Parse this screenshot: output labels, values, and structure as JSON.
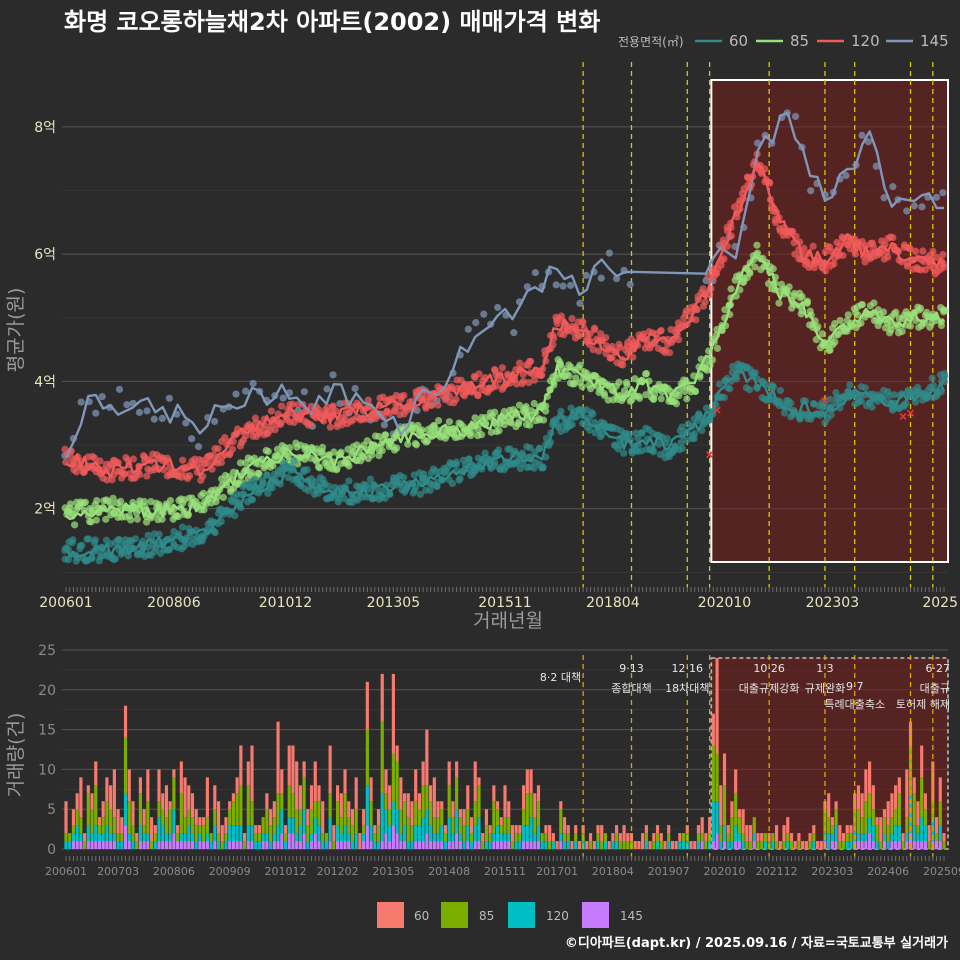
{
  "title": "화명 코오롱하늘채2차 아파트(2002) 매매가격 변화",
  "credit": "©디아파트(dapt.kr) / 2025.09.16 / 자료=국토교통부 실거래가",
  "colors": {
    "60": "#2f8a8a",
    "85": "#98e07a",
    "120": "#f05a5a",
    "145": "#7f97b8",
    "bar60": "#f87a6e",
    "bar85": "#7cae00",
    "bar120": "#00bfc4",
    "bar145": "#c77cff"
  },
  "chart_data": [
    {
      "type": "line",
      "title": "화명 코오롱하늘채2차 아파트(2002) 매매가격 변화",
      "xlabel": "거래년월",
      "ylabel": "평균가(원)",
      "legend_title": "전용면적(㎡)",
      "legend_position": "top-right",
      "x_tick_labels": [
        "200601",
        "200806",
        "201012",
        "201305",
        "201511",
        "201804",
        "202010",
        "202303",
        "2025"
      ],
      "y_tick_labels": [
        "2억",
        "4억",
        "6억",
        "8억"
      ],
      "ylim": [
        0.8,
        8.8
      ],
      "y_unit": "억",
      "vlines": [
        "2017-08",
        "2018-09",
        "2019-12",
        "2020-06",
        "2021-10",
        "2023-01",
        "2023-09",
        "2024-12",
        "2025-06"
      ],
      "highlight_range": [
        "2020-07",
        "2025-09"
      ],
      "series": [
        {
          "name": "60",
          "points": [
            [
              "2006-01",
              1.35
            ],
            [
              "2007-01",
              1.35
            ],
            [
              "2008-01",
              1.45
            ],
            [
              "2009-01",
              1.6
            ],
            [
              "2010-01",
              2.2
            ],
            [
              "2011-01",
              2.6
            ],
            [
              "2012-01",
              2.25
            ],
            [
              "2013-01",
              2.3
            ],
            [
              "2014-01",
              2.4
            ],
            [
              "2015-01",
              2.65
            ],
            [
              "2016-01",
              2.8
            ],
            [
              "2016-09",
              2.8
            ],
            [
              "2017-01",
              3.35
            ],
            [
              "2017-07",
              3.5
            ],
            [
              "2018-01",
              3.3
            ],
            [
              "2018-07",
              3.0
            ],
            [
              "2019-01",
              3.1
            ],
            [
              "2019-07",
              2.95
            ],
            [
              "2020-01",
              3.2
            ],
            [
              "2020-07",
              3.6
            ],
            [
              "2021-01",
              4.2
            ],
            [
              "2021-07",
              3.95
            ],
            [
              "2022-03",
              3.6
            ],
            [
              "2023-01",
              3.5
            ],
            [
              "2023-07",
              3.8
            ],
            [
              "2024-01",
              3.75
            ],
            [
              "2024-07",
              3.65
            ],
            [
              "2025-01",
              3.8
            ],
            [
              "2025-09",
              3.95
            ]
          ]
        },
        {
          "name": "85",
          "points": [
            [
              "2006-01",
              1.9
            ],
            [
              "2007-01",
              2.0
            ],
            [
              "2008-01",
              1.95
            ],
            [
              "2009-01",
              2.05
            ],
            [
              "2010-01",
              2.6
            ],
            [
              "2011-01",
              2.9
            ],
            [
              "2012-01",
              2.75
            ],
            [
              "2013-01",
              3.0
            ],
            [
              "2014-01",
              3.2
            ],
            [
              "2015-01",
              3.25
            ],
            [
              "2016-01",
              3.45
            ],
            [
              "2016-09",
              3.5
            ],
            [
              "2017-01",
              4.2
            ],
            [
              "2017-07",
              4.1
            ],
            [
              "2018-01",
              3.9
            ],
            [
              "2018-07",
              3.8
            ],
            [
              "2019-01",
              3.95
            ],
            [
              "2019-07",
              3.75
            ],
            [
              "2020-01",
              3.9
            ],
            [
              "2020-07",
              4.5
            ],
            [
              "2021-01",
              5.5
            ],
            [
              "2021-07",
              6.0
            ],
            [
              "2022-01",
              5.4
            ],
            [
              "2022-07",
              5.2
            ],
            [
              "2023-01",
              4.6
            ],
            [
              "2023-07",
              4.9
            ],
            [
              "2024-01",
              5.1
            ],
            [
              "2024-07",
              4.9
            ],
            [
              "2025-01",
              5.0
            ],
            [
              "2025-09",
              5.0
            ]
          ]
        },
        {
          "name": "120",
          "points": [
            [
              "2006-01",
              2.8
            ],
            [
              "2007-01",
              2.6
            ],
            [
              "2008-01",
              2.7
            ],
            [
              "2009-01",
              2.6
            ],
            [
              "2010-01",
              3.2
            ],
            [
              "2011-01",
              3.5
            ],
            [
              "2012-01",
              3.45
            ],
            [
              "2013-01",
              3.6
            ],
            [
              "2014-01",
              3.7
            ],
            [
              "2015-01",
              3.9
            ],
            [
              "2016-01",
              4.1
            ],
            [
              "2016-09",
              4.2
            ],
            [
              "2017-01",
              4.9
            ],
            [
              "2017-07",
              4.8
            ],
            [
              "2018-01",
              4.6
            ],
            [
              "2018-07",
              4.4
            ],
            [
              "2019-01",
              4.7
            ],
            [
              "2019-07",
              4.6
            ],
            [
              "2020-01",
              5.0
            ],
            [
              "2020-07",
              5.6
            ],
            [
              "2021-01",
              6.6
            ],
            [
              "2021-07",
              7.5
            ],
            [
              "2022-01",
              6.5
            ],
            [
              "2022-07",
              6.0
            ],
            [
              "2023-01",
              5.9
            ],
            [
              "2023-07",
              6.2
            ],
            [
              "2024-01",
              6.0
            ],
            [
              "2024-07",
              6.1
            ],
            [
              "2025-01",
              5.9
            ],
            [
              "2025-09",
              5.85
            ]
          ]
        },
        {
          "name": "145",
          "points": [
            [
              "2006-01",
              2.8
            ],
            [
              "2006-07",
              3.8
            ],
            [
              "2007-01",
              3.6
            ],
            [
              "2007-07",
              3.7
            ],
            [
              "2008-01",
              3.5
            ],
            [
              "2008-07",
              3.5
            ],
            [
              "2009-01",
              3.2
            ],
            [
              "2009-07",
              3.6
            ],
            [
              "2010-01",
              3.7
            ],
            [
              "2010-07",
              3.8
            ],
            [
              "2011-01",
              3.9
            ],
            [
              "2011-07",
              3.5
            ],
            [
              "2012-01",
              3.9
            ],
            [
              "2012-07",
              3.7
            ],
            [
              "2013-01",
              3.6
            ],
            [
              "2013-07",
              3.3
            ],
            [
              "2014-01",
              3.8
            ],
            [
              "2014-07",
              4.0
            ],
            [
              "2015-01",
              4.6
            ],
            [
              "2015-07",
              4.9
            ],
            [
              "2016-01",
              5.0
            ],
            [
              "2016-07",
              5.5
            ],
            [
              "2017-01",
              5.7
            ],
            [
              "2017-07",
              5.4
            ],
            [
              "2018-01",
              5.8
            ],
            [
              "2018-07",
              5.8
            ],
            [
              "2020-06",
              5.6
            ],
            [
              "2020-09",
              6.2
            ],
            [
              "2021-01",
              6.1
            ],
            [
              "2021-07",
              7.5
            ],
            [
              "2022-03",
              8.3
            ],
            [
              "2022-09",
              7.2
            ],
            [
              "2023-01",
              6.9
            ],
            [
              "2023-07",
              7.3
            ],
            [
              "2024-01",
              7.8
            ],
            [
              "2024-07",
              6.8
            ],
            [
              "2025-01",
              6.9
            ],
            [
              "2025-09",
              6.9
            ]
          ]
        }
      ]
    },
    {
      "type": "bar",
      "stacked": true,
      "ylabel": "거래량(건)",
      "ylim": [
        0,
        25
      ],
      "y_tick_labels": [
        "0",
        "5",
        "10",
        "15",
        "20",
        "25"
      ],
      "x_tick_labels": [
        "200601",
        "200703",
        "200806",
        "200909",
        "201012",
        "201202",
        "201305",
        "201408",
        "201511",
        "201701",
        "201804",
        "201907",
        "202010",
        "202112",
        "202303",
        "202406",
        "202509"
      ],
      "annotations": [
        {
          "date": "2017-08",
          "label": "8·2 대책"
        },
        {
          "date": "2018-09",
          "label": "9·13 종합대책"
        },
        {
          "date": "2019-12",
          "label": "12·16 18차대책"
        },
        {
          "date": "2021-10",
          "label": "10·26 대출규제강화"
        },
        {
          "date": "2023-01",
          "label": "1·3 규제완화"
        },
        {
          "date": "2023-09",
          "label": "9·7 특례대출축소"
        },
        {
          "date": "2024-12",
          "label": "토허제 해제"
        },
        {
          "date": "2025-06",
          "label": "6·27 대출규"
        }
      ],
      "series": [
        {
          "name": "60"
        },
        {
          "name": "85"
        },
        {
          "name": "120"
        },
        {
          "name": "145"
        }
      ]
    }
  ],
  "ui": {
    "bottom_legend": [
      "60",
      "85",
      "120",
      "145"
    ]
  }
}
